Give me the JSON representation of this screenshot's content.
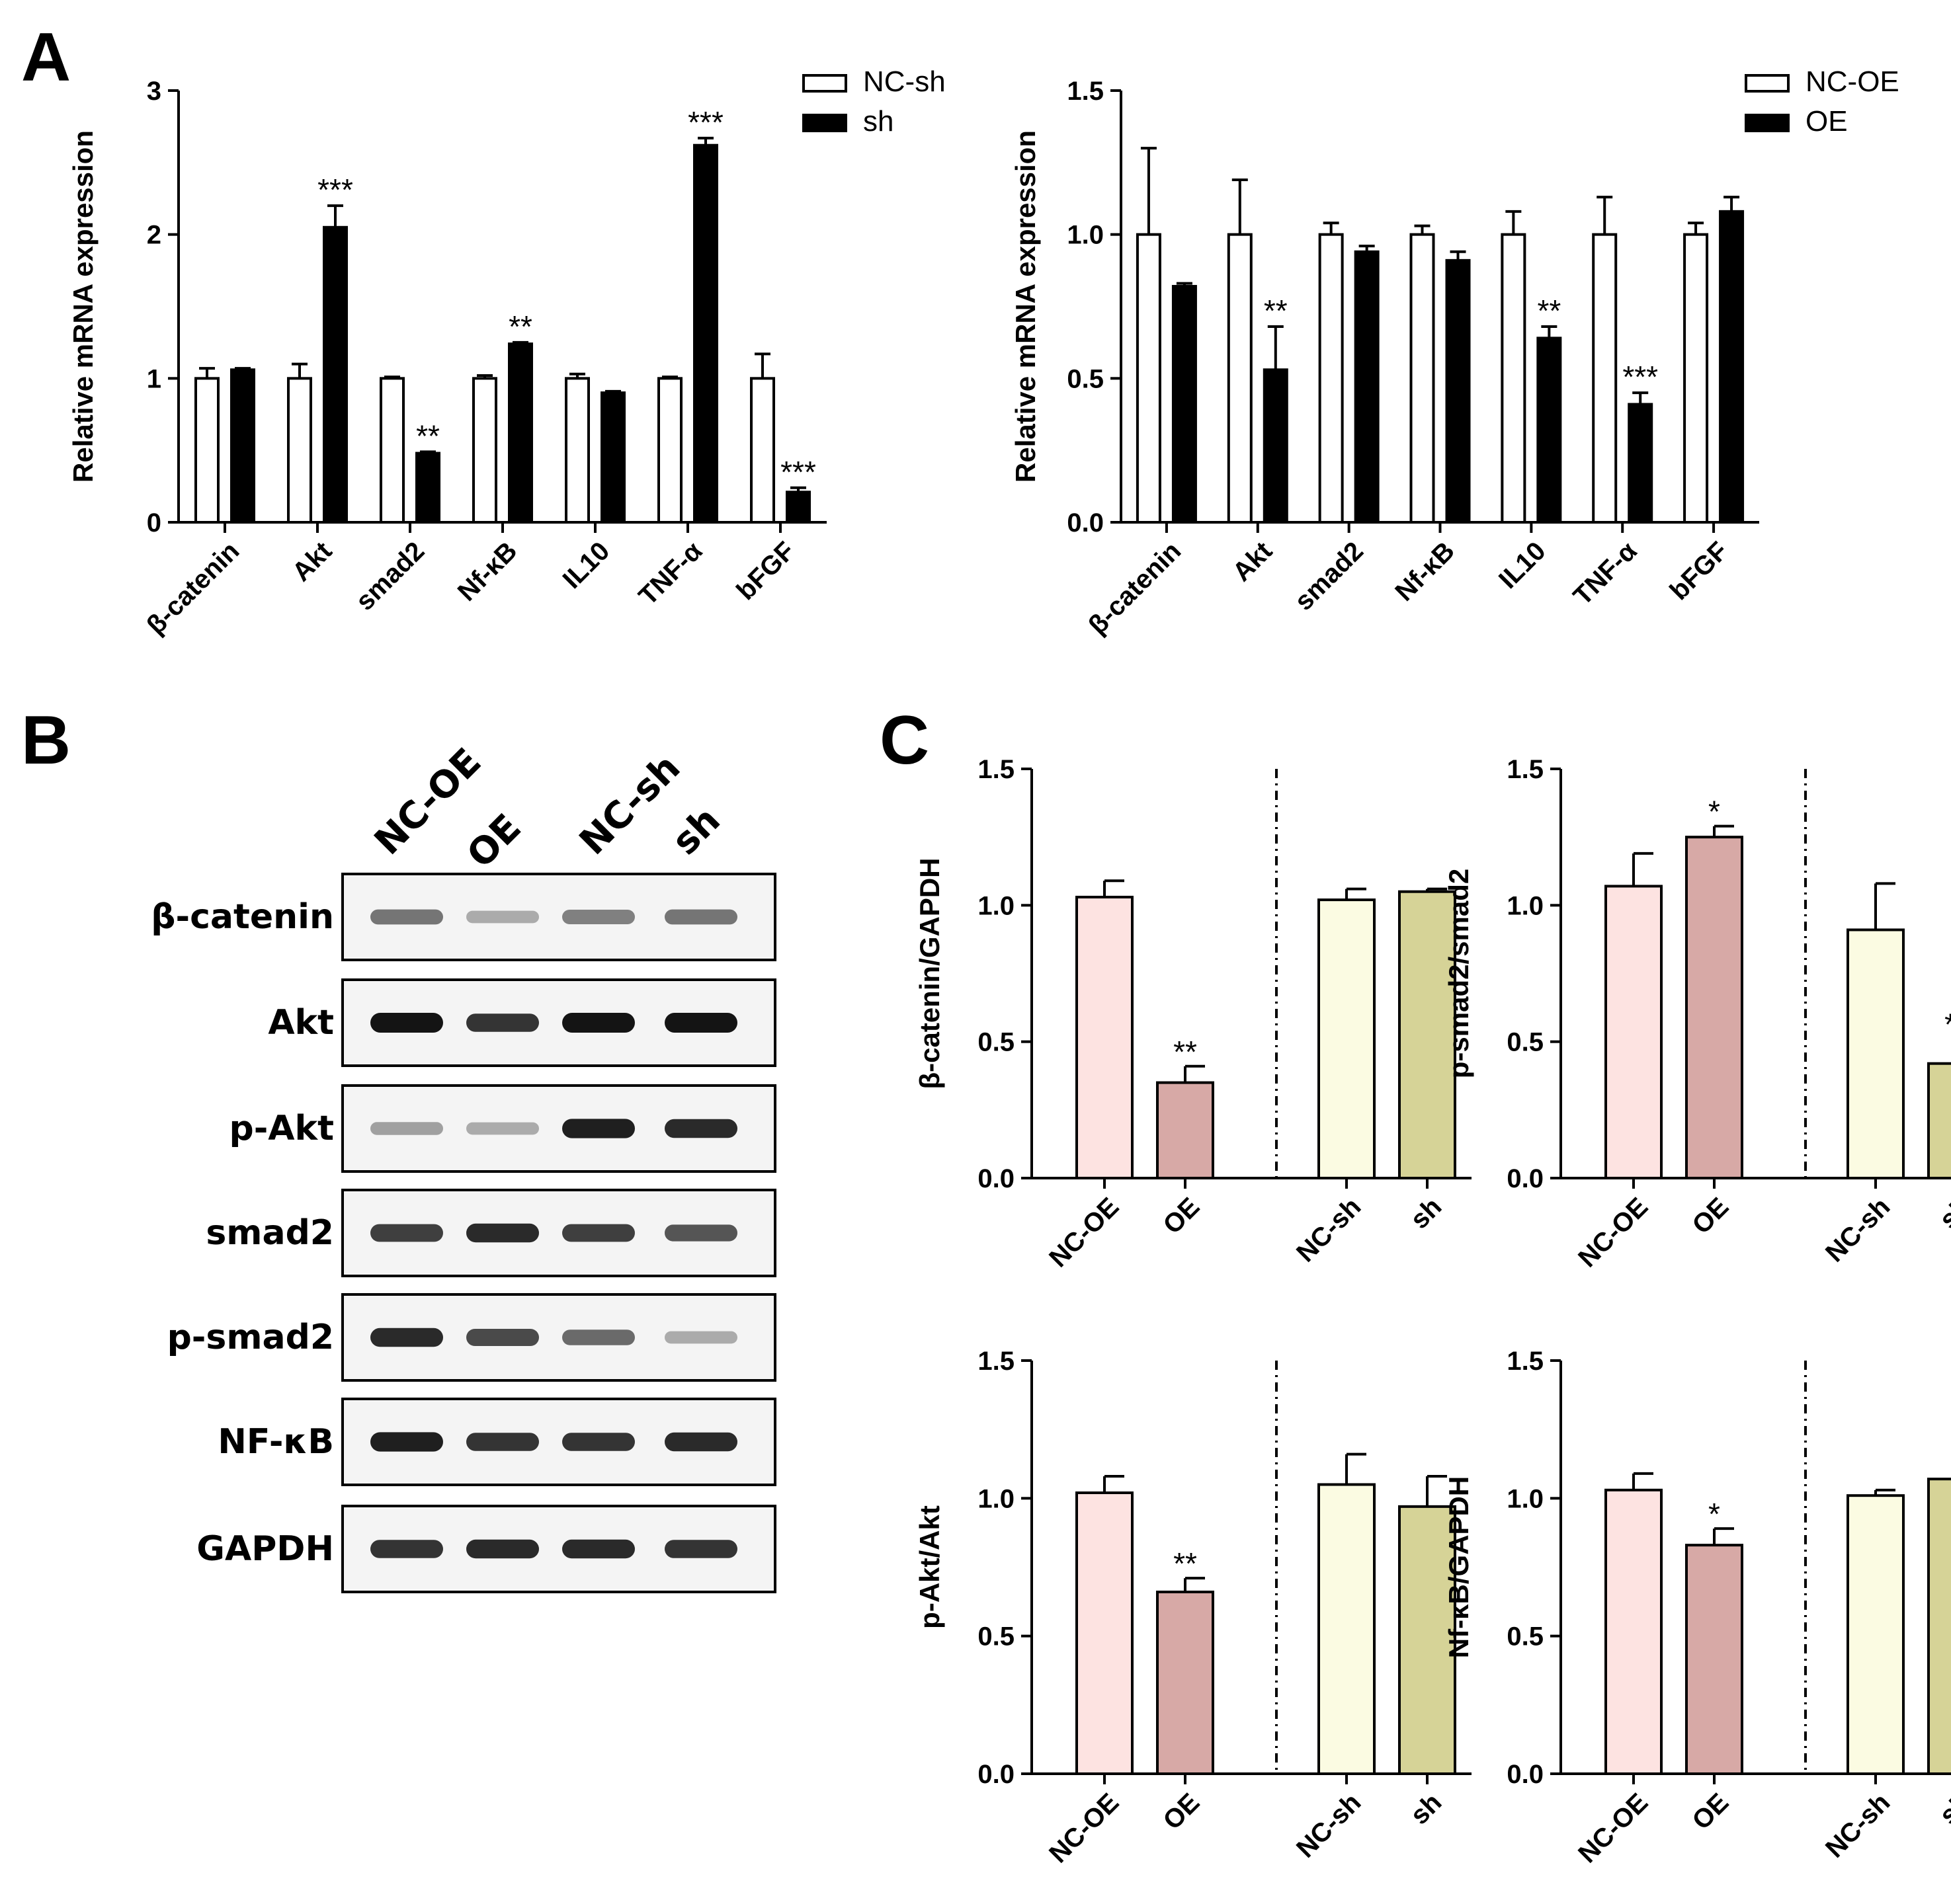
{
  "panel_labels": {
    "a": "A",
    "b": "B",
    "c": "C"
  },
  "colors": {
    "outline": "#000000",
    "nc_bar": "#ffffff",
    "treated_bar": "#000000",
    "nc_oe": "#fde3e1",
    "oe": "#d7a9a6",
    "nc_sh": "#fbfbe2",
    "sh": "#d6d397"
  },
  "chart_data": [
    {
      "id": "A-left",
      "type": "bar",
      "ylabel": "Relative mRNA expression",
      "ylim": [
        0,
        3
      ],
      "yticks": [
        "0",
        "1",
        "2",
        "3"
      ],
      "categories": [
        "β-catenin",
        "Akt",
        "smad2",
        "Nf-κB",
        "IL10",
        "TNF-α",
        "bFGF"
      ],
      "legend": [
        "NC-sh",
        "sh"
      ],
      "legend_position": "top-right",
      "series": [
        {
          "name": "NC-sh",
          "values": [
            1.0,
            1.0,
            1.0,
            1.0,
            1.0,
            1.0,
            1.0
          ],
          "errors": [
            0.07,
            0.1,
            0.01,
            0.02,
            0.03,
            0.01,
            0.17
          ]
        },
        {
          "name": "sh",
          "values": [
            1.06,
            2.05,
            0.48,
            1.24,
            0.9,
            2.62,
            0.21
          ],
          "errors": [
            0.01,
            0.15,
            0.01,
            0.01,
            0.01,
            0.05,
            0.03
          ]
        }
      ],
      "significance": [
        "",
        "***",
        "**",
        "**",
        "",
        "***",
        "***"
      ]
    },
    {
      "id": "A-right",
      "type": "bar",
      "ylabel": "Relative mRNA expression",
      "ylim": [
        0,
        1.5
      ],
      "yticks": [
        "0.0",
        "0.5",
        "1.0",
        "1.5"
      ],
      "categories": [
        "β-catenin",
        "Akt",
        "smad2",
        "Nf-κB",
        "IL10",
        "TNF-α",
        "bFGF"
      ],
      "legend": [
        "NC-OE",
        "OE"
      ],
      "legend_position": "top-right",
      "series": [
        {
          "name": "NC-OE",
          "values": [
            1.0,
            1.0,
            1.0,
            1.0,
            1.0,
            1.0,
            1.0
          ],
          "errors": [
            0.3,
            0.19,
            0.04,
            0.03,
            0.08,
            0.13,
            0.04
          ]
        },
        {
          "name": "OE",
          "values": [
            0.82,
            0.53,
            0.94,
            0.91,
            0.64,
            0.41,
            1.08
          ],
          "errors": [
            0.01,
            0.15,
            0.02,
            0.03,
            0.04,
            0.04,
            0.05
          ]
        }
      ],
      "significance": [
        "",
        "**",
        "",
        "",
        "**",
        "***",
        ""
      ]
    },
    {
      "id": "C-1",
      "type": "bar",
      "ylabel": "β-catenin/GAPDH",
      "ylim": [
        0,
        1.5
      ],
      "yticks": [
        "0.0",
        "0.5",
        "1.0",
        "1.5"
      ],
      "categories": [
        "NC-OE",
        "OE",
        "NC-sh",
        "sh"
      ],
      "values": [
        1.03,
        0.35,
        1.02,
        1.05
      ],
      "errors": [
        0.06,
        0.06,
        0.04,
        0.01
      ],
      "significance": [
        "",
        "**",
        "",
        ""
      ]
    },
    {
      "id": "C-2",
      "type": "bar",
      "ylabel": "p-smad2/smad2",
      "ylim": [
        0,
        1.5
      ],
      "yticks": [
        "0.0",
        "0.5",
        "1.0",
        "1.5"
      ],
      "categories": [
        "NC-OE",
        "OE",
        "NC-sh",
        "sh"
      ],
      "values": [
        1.07,
        1.25,
        0.91,
        0.42
      ],
      "errors": [
        0.12,
        0.04,
        0.17,
        0.09
      ],
      "significance": [
        "",
        "*",
        "",
        "**"
      ]
    },
    {
      "id": "C-3",
      "type": "bar",
      "ylabel": "p-Akt/Akt",
      "ylim": [
        0,
        1.5
      ],
      "yticks": [
        "0.0",
        "0.5",
        "1.0",
        "1.5"
      ],
      "categories": [
        "NC-OE",
        "OE",
        "NC-sh",
        "sh"
      ],
      "values": [
        1.02,
        0.66,
        1.05,
        0.97
      ],
      "errors": [
        0.06,
        0.05,
        0.11,
        0.11
      ],
      "significance": [
        "",
        "**",
        "",
        ""
      ]
    },
    {
      "id": "C-4",
      "type": "bar",
      "ylabel": "Nf-κB/GAPDH",
      "ylim": [
        0,
        1.5
      ],
      "yticks": [
        "0.0",
        "0.5",
        "1.0",
        "1.5"
      ],
      "categories": [
        "NC-OE",
        "OE",
        "NC-sh",
        "sh"
      ],
      "values": [
        1.03,
        0.83,
        1.01,
        1.07
      ],
      "errors": [
        0.06,
        0.06,
        0.02,
        0.03
      ],
      "significance": [
        "",
        "*",
        "",
        ""
      ]
    }
  ],
  "western_blot": {
    "lanes": [
      "NC-OE",
      "OE",
      "NC-sh",
      "sh"
    ],
    "rows": [
      {
        "label": "β-catenin",
        "intensity": [
          0.55,
          0.3,
          0.5,
          0.55
        ]
      },
      {
        "label": "Akt",
        "intensity": [
          1.0,
          0.85,
          1.0,
          1.0
        ]
      },
      {
        "label": "p-Akt",
        "intensity": [
          0.35,
          0.3,
          0.95,
          0.9
        ]
      },
      {
        "label": "smad2",
        "intensity": [
          0.8,
          0.9,
          0.8,
          0.7
        ]
      },
      {
        "label": "p-smad2",
        "intensity": [
          0.9,
          0.75,
          0.6,
          0.3
        ]
      },
      {
        "label": "NF-κB",
        "intensity": [
          0.95,
          0.85,
          0.85,
          0.9
        ]
      },
      {
        "label": "GAPDH",
        "intensity": [
          0.85,
          0.9,
          0.9,
          0.85
        ]
      }
    ]
  }
}
